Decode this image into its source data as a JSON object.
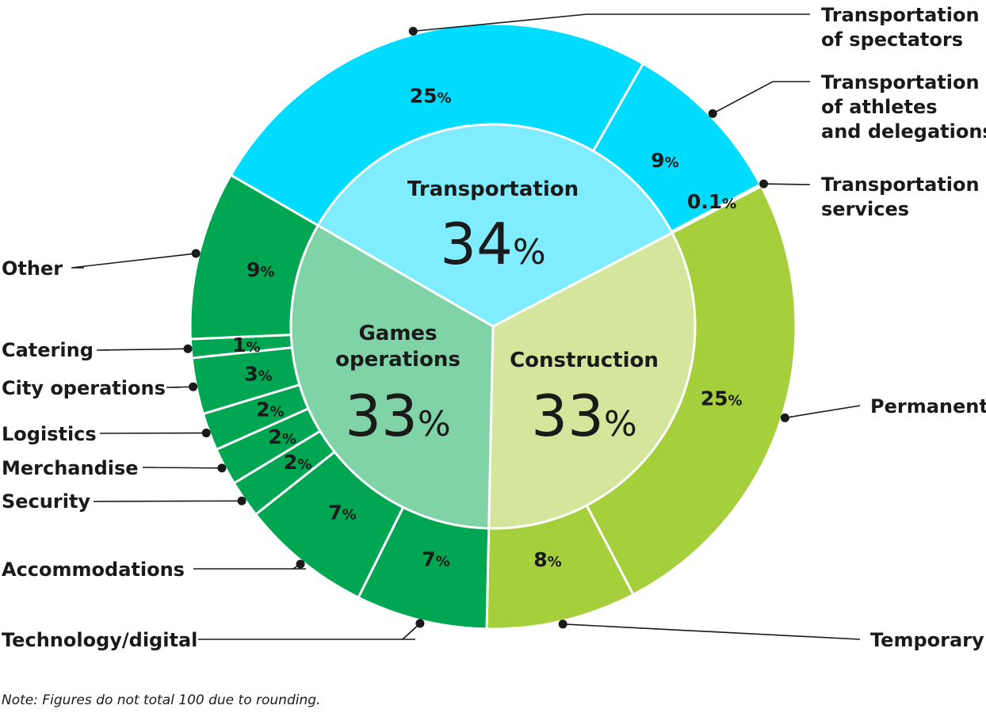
{
  "chart_data": {
    "type": "pie",
    "subtype": "sunburst-donut",
    "note": "Note: Figures do not total 100 due to rounding.",
    "categories": [
      {
        "name": "Transportation",
        "value": 34,
        "label": "34",
        "color": "#80ecff",
        "outer_color": "#00dcff",
        "items": [
          {
            "name": "Transportation of spectators",
            "value": 25,
            "label": "25",
            "callout_lines": [
              "Transportation",
              "of spectators"
            ]
          },
          {
            "name": "Transportation of athletes and delegations",
            "value": 9,
            "label": "9",
            "callout_lines": [
              "Transportation",
              "of athletes",
              "and delegations"
            ]
          },
          {
            "name": "Transportation services",
            "value": 0.1,
            "label": "0.1",
            "callout_lines": [
              "Transportation",
              "services"
            ]
          }
        ]
      },
      {
        "name": "Construction",
        "value": 33,
        "label": "33",
        "color": "#d4e69c",
        "outer_color": "#a6cf3c",
        "items": [
          {
            "name": "Permanent",
            "value": 25,
            "label": "25",
            "callout_lines": [
              "Permanent"
            ]
          },
          {
            "name": "Temporary",
            "value": 8,
            "label": "8",
            "callout_lines": [
              "Temporary"
            ]
          }
        ]
      },
      {
        "name": "Games operations",
        "value": 33,
        "label": "33",
        "name_lines": [
          "Games",
          "operations"
        ],
        "color": "#80d3a6",
        "outer_color": "#00a651",
        "items": [
          {
            "name": "Technology/digital",
            "value": 7,
            "label": "7",
            "callout_lines": [
              "Technology/digital"
            ]
          },
          {
            "name": "Accommodations",
            "value": 7,
            "label": "7",
            "callout_lines": [
              "Accommodations"
            ]
          },
          {
            "name": "Security",
            "value": 2,
            "label": "2",
            "callout_lines": [
              "Security"
            ]
          },
          {
            "name": "Merchandise",
            "value": 2,
            "label": "2",
            "callout_lines": [
              "Merchandise"
            ]
          },
          {
            "name": "Logistics",
            "value": 2,
            "label": "2",
            "callout_lines": [
              "Logistics"
            ]
          },
          {
            "name": "City operations",
            "value": 3,
            "label": "3",
            "callout_lines": [
              "City operations"
            ]
          },
          {
            "name": "Catering",
            "value": 1,
            "label": "1",
            "callout_lines": [
              "Catering"
            ]
          },
          {
            "name": "Other",
            "value": 9,
            "label": "9",
            "callout_lines": [
              "Other"
            ]
          }
        ]
      }
    ],
    "unit": "%"
  }
}
